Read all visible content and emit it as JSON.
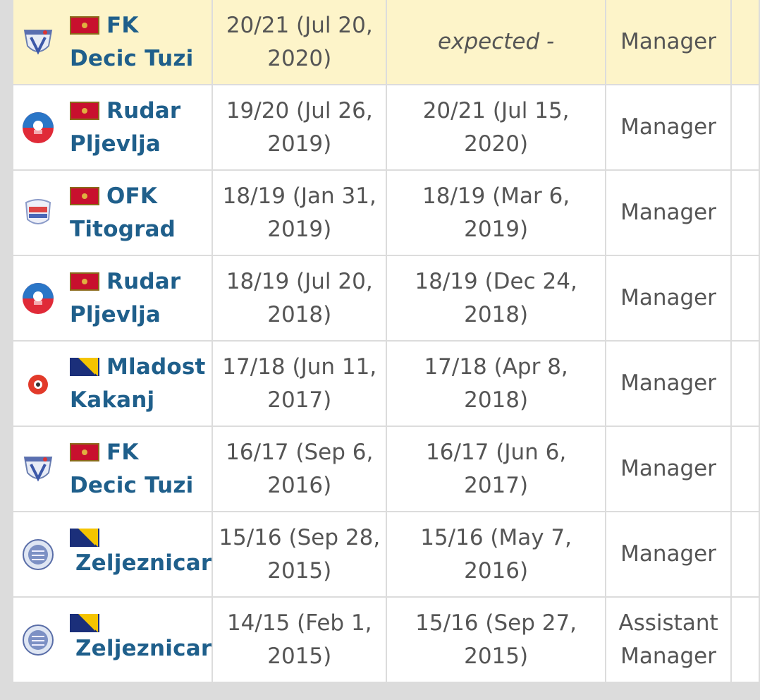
{
  "rows": [
    {
      "club_first": "FK",
      "club_second": "Decic Tuzi",
      "flag": "montenegro",
      "crest": "decic-crest",
      "from_a": "20/21 (Jul 20,",
      "from_b": "2020)",
      "to_a": "expected -",
      "to_b": "",
      "to_italic": true,
      "role_a": "Manager",
      "role_b": "",
      "highlight": true
    },
    {
      "club_first": "Rudar",
      "club_second": "Pljevlja",
      "flag": "montenegro",
      "crest": "rudar-crest",
      "from_a": "19/20 (Jul 26,",
      "from_b": "2019)",
      "to_a": "20/21 (Jul 15,",
      "to_b": "2020)",
      "role_a": "Manager",
      "role_b": ""
    },
    {
      "club_first": "OFK",
      "club_second": "Titograd",
      "flag": "montenegro",
      "crest": "titograd-crest",
      "from_a": "18/19 (Jan 31,",
      "from_b": "2019)",
      "to_a": "18/19 (Mar 6,",
      "to_b": "2019)",
      "role_a": "Manager",
      "role_b": ""
    },
    {
      "club_first": "Rudar",
      "club_second": "Pljevlja",
      "flag": "montenegro",
      "crest": "rudar-crest",
      "from_a": "18/19 (Jul 20,",
      "from_b": "2018)",
      "to_a": "18/19 (Dec 24,",
      "to_b": "2018)",
      "role_a": "Manager",
      "role_b": ""
    },
    {
      "club_first": "Mladost",
      "club_second": "Kakanj",
      "flag": "bosnia",
      "crest": "mladost-crest",
      "from_a": "17/18 (Jun 11,",
      "from_b": "2017)",
      "to_a": "17/18 (Apr 8, 2018)",
      "to_b": "",
      "role_a": "Manager",
      "role_b": ""
    },
    {
      "club_first": "FK",
      "club_second": "Decic Tuzi",
      "flag": "montenegro",
      "crest": "decic-crest",
      "from_a": "16/17 (Sep 6,",
      "from_b": "2016)",
      "to_a": "16/17 (Jun 6, 2017)",
      "to_b": "",
      "role_a": "Manager",
      "role_b": ""
    },
    {
      "club_first": "",
      "club_second": "Zeljeznicar",
      "flag": "bosnia",
      "crest": "zeljeznicar-crest",
      "from_a": "15/16 (Sep 28,",
      "from_b": "2015)",
      "to_a": "15/16 (May 7,",
      "to_b": "2016)",
      "role_a": "Manager",
      "role_b": ""
    },
    {
      "club_first": "",
      "club_second": "Zeljeznicar",
      "flag": "bosnia",
      "crest": "zeljeznicar-crest",
      "from_a": "14/15 (Feb 1,",
      "from_b": "2015)",
      "to_a": "15/16 (Sep 27,",
      "to_b": "2015)",
      "role_a": "Assistant",
      "role_b": "Manager"
    }
  ]
}
